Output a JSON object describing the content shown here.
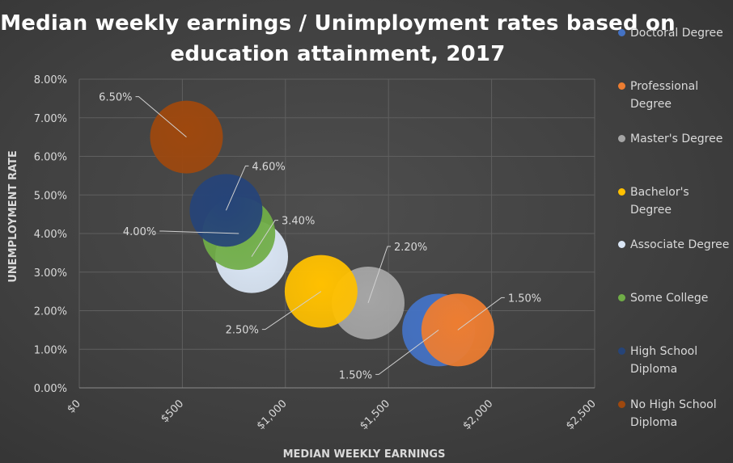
{
  "chart_data": {
    "type": "bubble",
    "title": "Median weekly earnings / Unimployment rates based on education attainment, 2017",
    "xlabel": "MEDIAN WEEKLY EARNINGS",
    "ylabel": "UNEMPLOYMENT RATE",
    "xlim": [
      0,
      2500
    ],
    "ylim": [
      0,
      0.08
    ],
    "x_ticks": [
      "$0",
      "$500",
      "$1,000",
      "$1,500",
      "$2,000",
      "$2,500"
    ],
    "y_ticks": [
      "0.00%",
      "1.00%",
      "2.00%",
      "3.00%",
      "4.00%",
      "5.00%",
      "6.00%",
      "7.00%",
      "8.00%"
    ],
    "grid": "vertical-and-horizontal",
    "legend_position": "right",
    "series": [
      {
        "name": "Doctoral Degree",
        "x": 1743,
        "y": 0.015,
        "label": "1.50%",
        "color": "#4472c4"
      },
      {
        "name": "Professional Degree",
        "x": 1836,
        "y": 0.015,
        "label": "1.50%",
        "color": "#ed7d31"
      },
      {
        "name": "Master's Degree",
        "x": 1401,
        "y": 0.022,
        "label": "2.20%",
        "color": "#a5a5a5"
      },
      {
        "name": "Bachelor's Degree",
        "x": 1173,
        "y": 0.025,
        "label": "2.50%",
        "color": "#ffc000"
      },
      {
        "name": "Associate Degree",
        "x": 836,
        "y": 0.034,
        "label": "3.40%",
        "color": "#dbe7f6"
      },
      {
        "name": "Some College",
        "x": 774,
        "y": 0.04,
        "label": "4.00%",
        "color": "#70ad47"
      },
      {
        "name": "High School Diploma",
        "x": 712,
        "y": 0.046,
        "label": "4.60%",
        "color": "#264478"
      },
      {
        "name": "No High School Diploma",
        "x": 520,
        "y": 0.065,
        "label": "6.50%",
        "color": "#9e480e"
      }
    ]
  }
}
